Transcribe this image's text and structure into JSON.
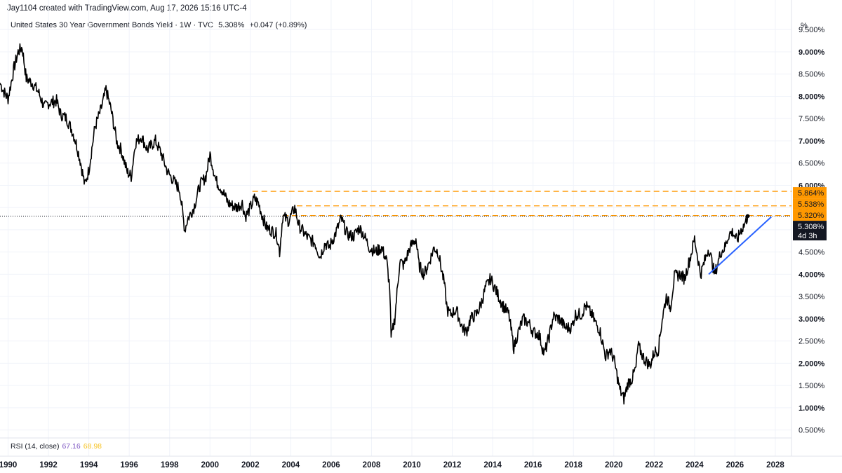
{
  "attribution": "Jay1104 created with TradingView.com, Aug 17, 2026 15:16 UTC-4",
  "legend": {
    "symbol": "United States 30 Year Government Bonds Yield · 1W · TVC",
    "last": "5.308%",
    "change": "+0.047 (+0.89%)"
  },
  "unit": "%",
  "rsi": {
    "label": "RSI (14, close)",
    "value1": "67.16",
    "value2": "68.98"
  },
  "colors": {
    "price": "#000000",
    "trendline": "#2962ff",
    "levels": "#ff9800",
    "grid": "#f0f3fa",
    "last_tag": "#131722"
  },
  "chart_data": {
    "type": "line",
    "title": "United States 30 Year Government Bonds Yield · 1W · TVC",
    "xlabel": "",
    "ylabel": "%",
    "xlim": [
      1989.6,
      2028.8
    ],
    "ylim": [
      0.4,
      9.85
    ],
    "grid": true,
    "x_ticks": [
      "1990",
      "1992",
      "1994",
      "1996",
      "1998",
      "2000",
      "2002",
      "2004",
      "2006",
      "2008",
      "2010",
      "2012",
      "2014",
      "2016",
      "2018",
      "2020",
      "2022",
      "2024",
      "2026",
      "2028"
    ],
    "y_ticks": [
      "9.500%",
      "9.000%",
      "8.500%",
      "8.000%",
      "7.500%",
      "7.000%",
      "6.500%",
      "6.000%",
      "5.500%",
      "5.000%",
      "4.500%",
      "4.000%",
      "3.500%",
      "3.000%",
      "2.500%",
      "2.000%",
      "1.500%",
      "1.000%",
      "0.500%"
    ],
    "series": [
      {
        "x": [
          1989.6,
          1989.8,
          1990.0,
          1990.3,
          1990.5,
          1990.7,
          1990.9,
          1991.2,
          1991.5,
          1991.8,
          1992.0,
          1992.4,
          1992.6,
          1992.9,
          1993.2,
          1993.4,
          1993.6,
          1993.8,
          1994.0,
          1994.3,
          1994.6,
          1994.85,
          1995.1,
          1995.4,
          1995.6,
          1995.9,
          1996.1,
          1996.3,
          1996.6,
          1996.9,
          1997.3,
          1997.6,
          1997.9,
          1998.2,
          1998.5,
          1998.75,
          1998.9,
          1999.2,
          1999.5,
          1999.8,
          2000.0,
          2000.3,
          2000.6,
          2000.9,
          2001.3,
          2001.6,
          2001.75,
          2001.9,
          2002.2,
          2002.4,
          2002.6,
          2002.8,
          2003.0,
          2003.3,
          2003.45,
          2003.6,
          2003.9,
          2004.2,
          2004.4,
          2004.7,
          2004.9,
          2005.2,
          2005.45,
          2005.7,
          2005.9,
          2006.2,
          2006.5,
          2006.8,
          2007.1,
          2007.4,
          2007.6,
          2007.9,
          2008.2,
          2008.5,
          2008.75,
          2008.9,
          2008.97,
          2009.15,
          2009.4,
          2009.6,
          2009.9,
          2010.2,
          2010.35,
          2010.6,
          2010.8,
          2011.1,
          2011.3,
          2011.6,
          2011.75,
          2011.9,
          2012.2,
          2012.5,
          2012.7,
          2012.9,
          2013.2,
          2013.4,
          2013.65,
          2013.9,
          2014.2,
          2014.5,
          2014.8,
          2015.05,
          2015.2,
          2015.5,
          2015.8,
          2016.0,
          2016.3,
          2016.55,
          2016.8,
          2017.0,
          2017.3,
          2017.6,
          2017.9,
          2018.1,
          2018.4,
          2018.6,
          2018.9,
          2019.1,
          2019.3,
          2019.6,
          2019.8,
          2020.0,
          2020.15,
          2020.3,
          2020.5,
          2020.7,
          2020.9,
          2021.1,
          2021.2,
          2021.5,
          2021.8,
          2022.0,
          2022.2,
          2022.4,
          2022.6,
          2022.8,
          2023.0,
          2023.3,
          2023.5,
          2023.8,
          2024.0,
          2024.3,
          2024.5,
          2024.7,
          2024.8,
          2025.0,
          2025.3,
          2025.5,
          2025.7,
          2025.9,
          2026.1,
          2026.3,
          2026.45,
          2026.55,
          2026.63
        ],
        "values": [
          8.3,
          8.1,
          7.95,
          8.65,
          9.0,
          9.1,
          8.4,
          8.3,
          8.1,
          7.75,
          7.85,
          7.9,
          7.6,
          7.5,
          7.2,
          6.9,
          6.5,
          6.0,
          6.35,
          7.3,
          7.7,
          8.15,
          7.7,
          6.95,
          6.8,
          6.3,
          6.2,
          6.95,
          7.1,
          6.8,
          7.0,
          6.7,
          6.3,
          6.1,
          5.9,
          5.0,
          5.25,
          5.5,
          6.0,
          6.2,
          6.7,
          6.1,
          5.9,
          5.6,
          5.5,
          5.6,
          5.3,
          5.4,
          5.7,
          5.6,
          5.3,
          5.05,
          5.0,
          4.9,
          4.5,
          5.3,
          5.2,
          5.5,
          5.1,
          4.9,
          4.8,
          4.7,
          4.4,
          4.7,
          4.6,
          4.9,
          5.25,
          4.9,
          4.85,
          5.05,
          4.9,
          4.6,
          4.5,
          4.6,
          4.3,
          3.7,
          2.55,
          3.0,
          4.3,
          4.2,
          4.6,
          4.8,
          4.2,
          4.0,
          4.2,
          4.6,
          4.5,
          3.8,
          3.2,
          3.1,
          3.2,
          2.8,
          2.7,
          3.0,
          3.1,
          3.3,
          3.7,
          3.9,
          3.6,
          3.3,
          3.1,
          2.35,
          2.6,
          3.0,
          2.9,
          2.7,
          2.65,
          2.2,
          2.6,
          3.05,
          3.0,
          2.8,
          2.8,
          3.1,
          3.1,
          3.3,
          3.1,
          2.9,
          2.75,
          2.15,
          2.3,
          2.1,
          1.75,
          1.4,
          1.2,
          1.55,
          1.65,
          1.9,
          2.4,
          2.1,
          1.95,
          2.25,
          2.3,
          3.0,
          3.5,
          3.25,
          3.95,
          4.0,
          3.9,
          4.4,
          4.8,
          4.0,
          4.3,
          4.6,
          4.4,
          4.0,
          4.5,
          4.6,
          4.9,
          4.95,
          4.75,
          5.0,
          5.1,
          5.2,
          5.308
        ],
        "name": ""
      }
    ],
    "trendline": {
      "x": [
        2024.7,
        2027.8
      ],
      "values": [
        4.0,
        5.29
      ]
    },
    "levels": [
      {
        "label": "5.864%",
        "value": 5.864,
        "x_start": 2002.1
      },
      {
        "label": "5.538%",
        "value": 5.538,
        "x_start": 2004.3
      },
      {
        "label": "5.320%",
        "value": 5.32,
        "x_start": 2003.6
      }
    ],
    "last_value": {
      "label": "5.308%",
      "countdown": "4d 3h",
      "value": 5.308
    }
  }
}
